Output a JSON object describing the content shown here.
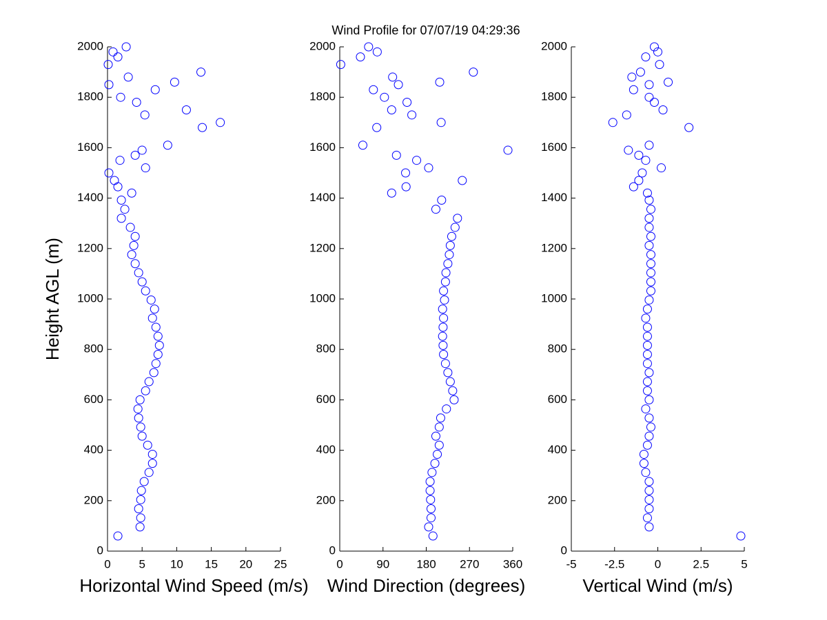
{
  "title": "Wind Profile for  07/07/19 04:29:36",
  "chart_data": [
    {
      "type": "scatter",
      "xlabel": "Horizontal Wind Speed (m/s)",
      "ylabel": "Height AGL (m)",
      "color": "#0000ff",
      "xlim": [
        0,
        25
      ],
      "xticks": [
        0,
        5,
        10,
        15,
        20,
        25
      ],
      "ylim": [
        0,
        2000
      ],
      "yticks": [
        0,
        200,
        400,
        600,
        800,
        1000,
        1200,
        1400,
        1600,
        1800,
        2000
      ],
      "x": [
        1.5,
        4.7,
        4.8,
        4.5,
        4.8,
        4.9,
        5.3,
        6.0,
        6.5,
        6.5,
        5.8,
        5.0,
        4.8,
        4.5,
        4.4,
        4.7,
        5.5,
        6.0,
        6.7,
        7.0,
        7.3,
        7.5,
        7.3,
        7.0,
        6.5,
        6.8,
        6.3,
        5.5,
        5.0,
        4.5,
        4.0,
        3.5,
        3.8,
        4.0,
        3.3,
        2.0,
        2.5,
        2.0,
        3.5,
        1.5,
        1.0,
        0.2,
        5.5,
        1.8,
        4.0,
        5.0,
        8.7,
        13.7,
        16.3,
        5.4,
        11.4,
        4.2,
        1.9,
        6.9,
        0.2,
        9.7,
        3.0,
        13.5,
        0.1,
        1.5,
        0.8,
        2.7
      ],
      "values": [
        60,
        96,
        132,
        168,
        204,
        240,
        276,
        312,
        348,
        384,
        420,
        456,
        492,
        528,
        564,
        600,
        636,
        672,
        708,
        744,
        780,
        816,
        852,
        888,
        924,
        960,
        996,
        1032,
        1068,
        1104,
        1140,
        1176,
        1212,
        1248,
        1284,
        1320,
        1356,
        1392,
        1420,
        1445,
        1470,
        1500,
        1520,
        1550,
        1570,
        1590,
        1610,
        1680,
        1700,
        1730,
        1750,
        1780,
        1800,
        1830,
        1850,
        1860,
        1880,
        1900,
        1930,
        1960,
        1980,
        2000
      ]
    },
    {
      "type": "scatter",
      "xlabel": "Wind Direction (degrees)",
      "color": "#0000ff",
      "xlim": [
        0,
        360
      ],
      "xticks": [
        0,
        90,
        180,
        270,
        360
      ],
      "ylim": [
        0,
        2000
      ],
      "yticks": [
        0,
        200,
        400,
        600,
        800,
        1000,
        1200,
        1400,
        1600,
        1800,
        2000
      ],
      "x": [
        194,
        185,
        190,
        190,
        189,
        188,
        188,
        192,
        198,
        203,
        207,
        200,
        207,
        210,
        222,
        238,
        235,
        230,
        225,
        220,
        216,
        215,
        214,
        215,
        216,
        214,
        218,
        216,
        220,
        221,
        225,
        228,
        230,
        233,
        240,
        245,
        200,
        212,
        108,
        138,
        255,
        137,
        185,
        160,
        118,
        350,
        48,
        77,
        211,
        150,
        108,
        140,
        93,
        70,
        122,
        208,
        110,
        278,
        2,
        43,
        78,
        60
      ],
      "values": [
        60,
        96,
        132,
        168,
        204,
        240,
        276,
        312,
        348,
        384,
        420,
        456,
        492,
        528,
        564,
        600,
        636,
        672,
        708,
        744,
        780,
        816,
        852,
        888,
        924,
        960,
        996,
        1032,
        1068,
        1104,
        1140,
        1176,
        1212,
        1248,
        1284,
        1320,
        1356,
        1392,
        1420,
        1445,
        1470,
        1500,
        1520,
        1550,
        1570,
        1590,
        1610,
        1680,
        1700,
        1730,
        1750,
        1780,
        1800,
        1830,
        1850,
        1860,
        1880,
        1900,
        1930,
        1960,
        1980,
        2000
      ]
    },
    {
      "type": "scatter",
      "xlabel": "Vertical Wind (m/s)",
      "color": "#0000ff",
      "xlim": [
        -5,
        5
      ],
      "xticks": [
        -5,
        -2.5,
        0,
        2.5,
        5
      ],
      "ylim": [
        0,
        2000
      ],
      "yticks": [
        0,
        200,
        400,
        600,
        800,
        1000,
        1200,
        1400,
        1600,
        1800,
        2000
      ],
      "x": [
        4.8,
        -0.5,
        -0.6,
        -0.5,
        -0.5,
        -0.5,
        -0.5,
        -0.7,
        -0.8,
        -0.8,
        -0.6,
        -0.5,
        -0.4,
        -0.5,
        -0.7,
        -0.5,
        -0.6,
        -0.6,
        -0.5,
        -0.6,
        -0.6,
        -0.6,
        -0.6,
        -0.6,
        -0.7,
        -0.6,
        -0.5,
        -0.4,
        -0.4,
        -0.4,
        -0.4,
        -0.4,
        -0.5,
        -0.4,
        -0.5,
        -0.5,
        -0.4,
        -0.5,
        -0.6,
        -1.4,
        -1.1,
        -0.9,
        0.2,
        -0.7,
        -1.1,
        -1.7,
        -0.5,
        1.8,
        -2.6,
        -1.8,
        0.3,
        -0.2,
        -0.5,
        -1.4,
        -0.5,
        0.6,
        -1.5,
        -1.0,
        0.1,
        -0.7,
        0.0,
        -0.2
      ],
      "values": [
        60,
        96,
        132,
        168,
        204,
        240,
        276,
        312,
        348,
        384,
        420,
        456,
        492,
        528,
        564,
        600,
        636,
        672,
        708,
        744,
        780,
        816,
        852,
        888,
        924,
        960,
        996,
        1032,
        1068,
        1104,
        1140,
        1176,
        1212,
        1248,
        1284,
        1320,
        1356,
        1392,
        1420,
        1445,
        1470,
        1500,
        1520,
        1550,
        1570,
        1590,
        1610,
        1680,
        1700,
        1730,
        1750,
        1780,
        1800,
        1830,
        1850,
        1860,
        1880,
        1900,
        1930,
        1960,
        1980,
        2000
      ]
    }
  ]
}
